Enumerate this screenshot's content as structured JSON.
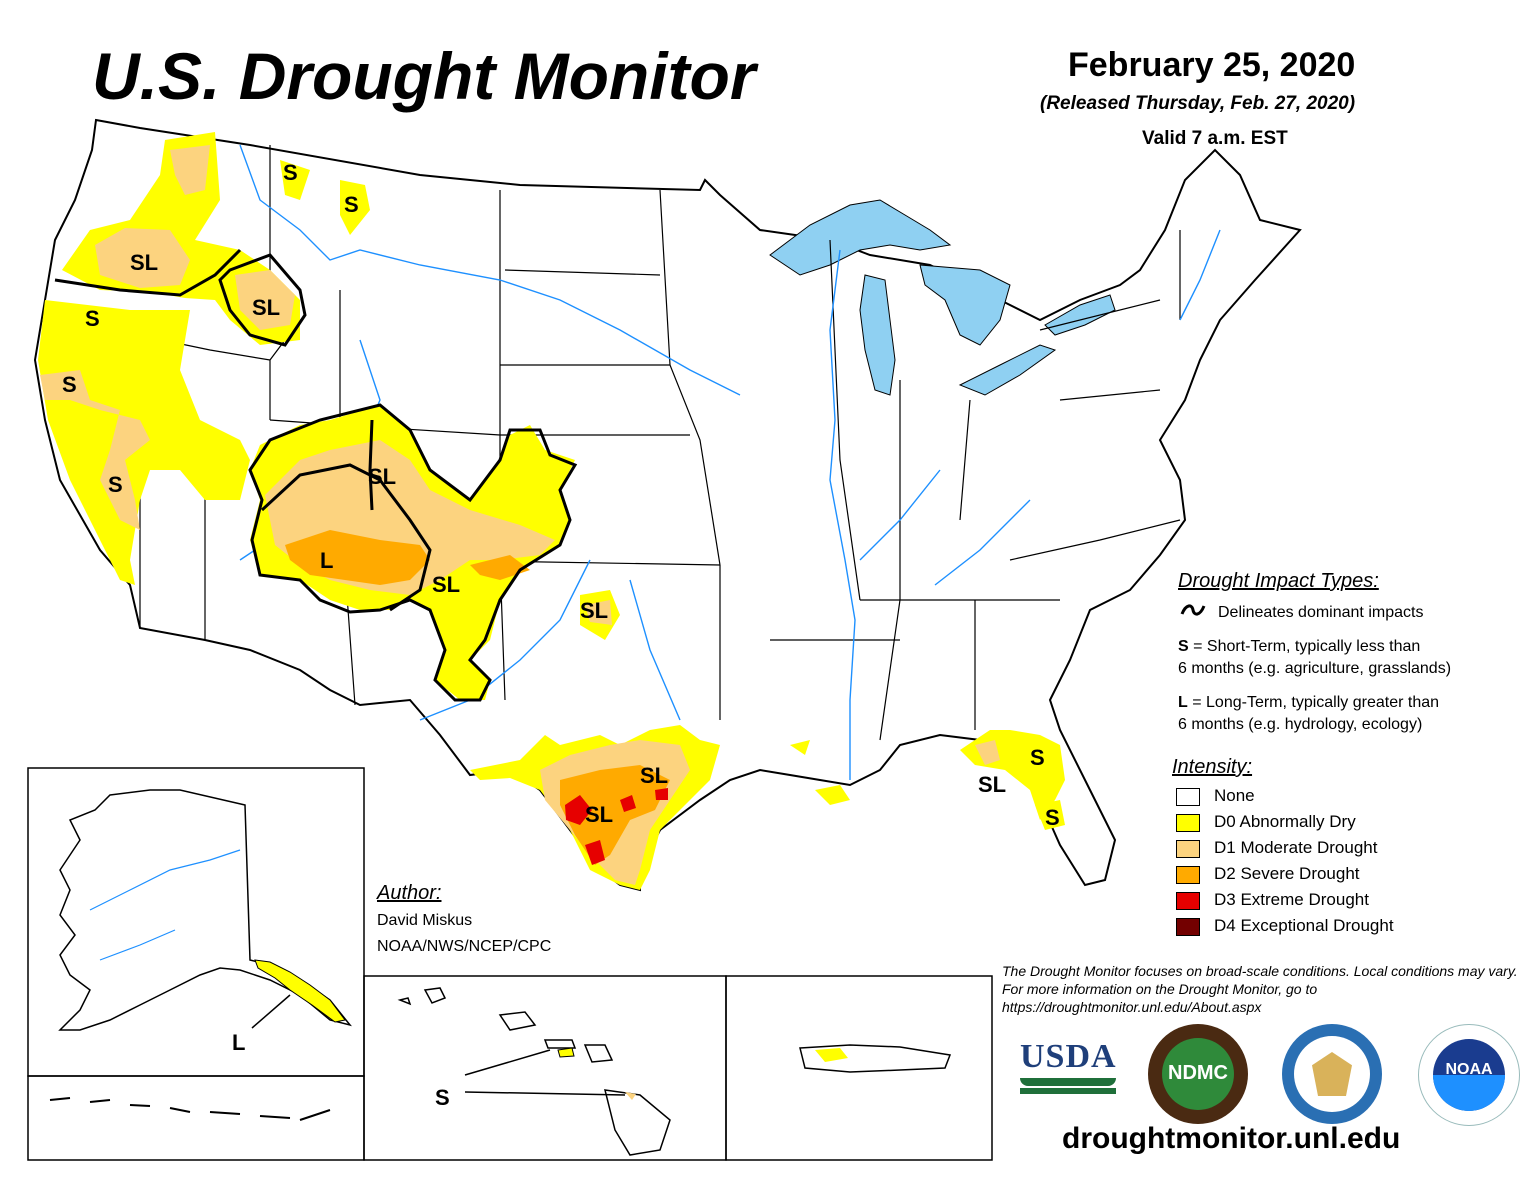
{
  "header": {
    "title": "U.S. Drought Monitor",
    "date": "February 25, 2020",
    "released": "(Released Thursday, Feb. 27, 2020)",
    "valid": "Valid 7 a.m. EST"
  },
  "map_labels": {
    "wa_or_border": "SL",
    "idaho": "SL",
    "mt_west": "S",
    "mt_east": "S",
    "or_coast": "S",
    "ca_north": "S",
    "ca_central": "S",
    "four_corners_north": "SL",
    "four_corners_core": "L",
    "nm_north": "SL",
    "ok": "SL",
    "tx_east": "SL",
    "tx_south": "SL",
    "fl_north": "SL",
    "fl_east": "S",
    "fl_south": "S",
    "alaska": "L",
    "hawaii": "S"
  },
  "legend": {
    "impact_title": "Drought Impact Types:",
    "delineates": "Delineates dominant impacts",
    "short_term_key": "S",
    "short_term_line1": " = Short-Term, typically less than",
    "short_term_line2": "6 months (e.g. agriculture, grasslands)",
    "long_term_key": "L",
    "long_term_line1": " = Long-Term, typically greater than",
    "long_term_line2": "6 months (e.g. hydrology, ecology)",
    "intensity_title": "Intensity:",
    "levels": [
      {
        "label": "None",
        "color": "#ffffff"
      },
      {
        "label": "D0 Abnormally Dry",
        "color": "#ffff00"
      },
      {
        "label": "D1 Moderate Drought",
        "color": "#fcd37f"
      },
      {
        "label": "D2 Severe Drought",
        "color": "#ffaa00"
      },
      {
        "label": "D3 Extreme Drought",
        "color": "#e60000"
      },
      {
        "label": "D4 Exceptional Drought",
        "color": "#730000"
      }
    ]
  },
  "author": {
    "heading": "Author:",
    "name": "David Miskus",
    "org": "NOAA/NWS/NCEP/CPC"
  },
  "disclaimer": "The Drought Monitor focuses on broad-scale conditions. Local conditions may vary. For more information on the Drought Monitor, go to https://droughtmonitor.unl.edu/About.aspx",
  "logos": {
    "usda": "USDA",
    "ndmc": "NDMC",
    "noaa": "NOAA"
  },
  "url": "droughtmonitor.unl.edu",
  "colors": {
    "water": "#8fd0f2",
    "river": "#1e90ff"
  }
}
